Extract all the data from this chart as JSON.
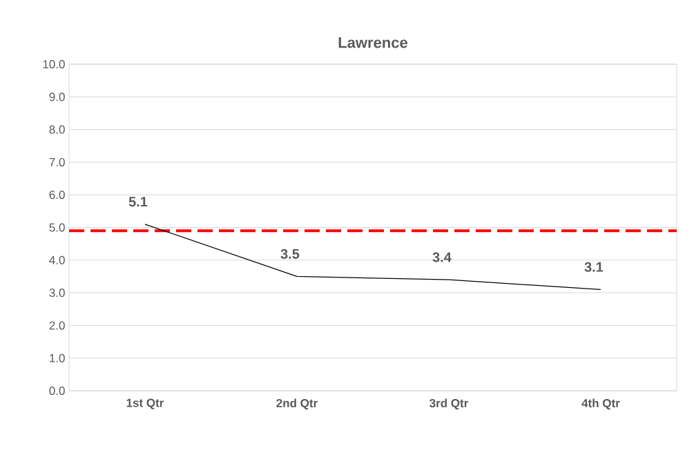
{
  "chart_data": {
    "type": "line",
    "title": "Lawrence",
    "categories": [
      "1st Qtr",
      "2nd Qtr",
      "3rd Qtr",
      "4th Qtr"
    ],
    "series": [
      {
        "color": "#000000",
        "values": [
          5.1,
          3.5,
          3.4,
          3.1
        ],
        "value_labels": [
          "5.1",
          "3.5",
          "3.4",
          "3.1"
        ]
      }
    ],
    "ylim": [
      0,
      10
    ],
    "yticks": [
      {
        "value": 0,
        "label": "0.0"
      },
      {
        "value": 1,
        "label": "1.0"
      },
      {
        "value": 2,
        "label": "2.0"
      },
      {
        "value": 3,
        "label": "3.0"
      },
      {
        "value": 4,
        "label": "4.0"
      },
      {
        "value": 5,
        "label": "5.0"
      },
      {
        "value": 6,
        "label": "6.0"
      },
      {
        "value": 7,
        "label": "7.0"
      },
      {
        "value": 8,
        "label": "8.0"
      },
      {
        "value": 9,
        "label": "9.0"
      },
      {
        "value": 10,
        "label": "10.0"
      }
    ],
    "ref_lines": [
      {
        "axis": "y",
        "value": 4.9,
        "color": "#ff0000",
        "line_style": "dashed"
      }
    ],
    "grid": "y"
  }
}
